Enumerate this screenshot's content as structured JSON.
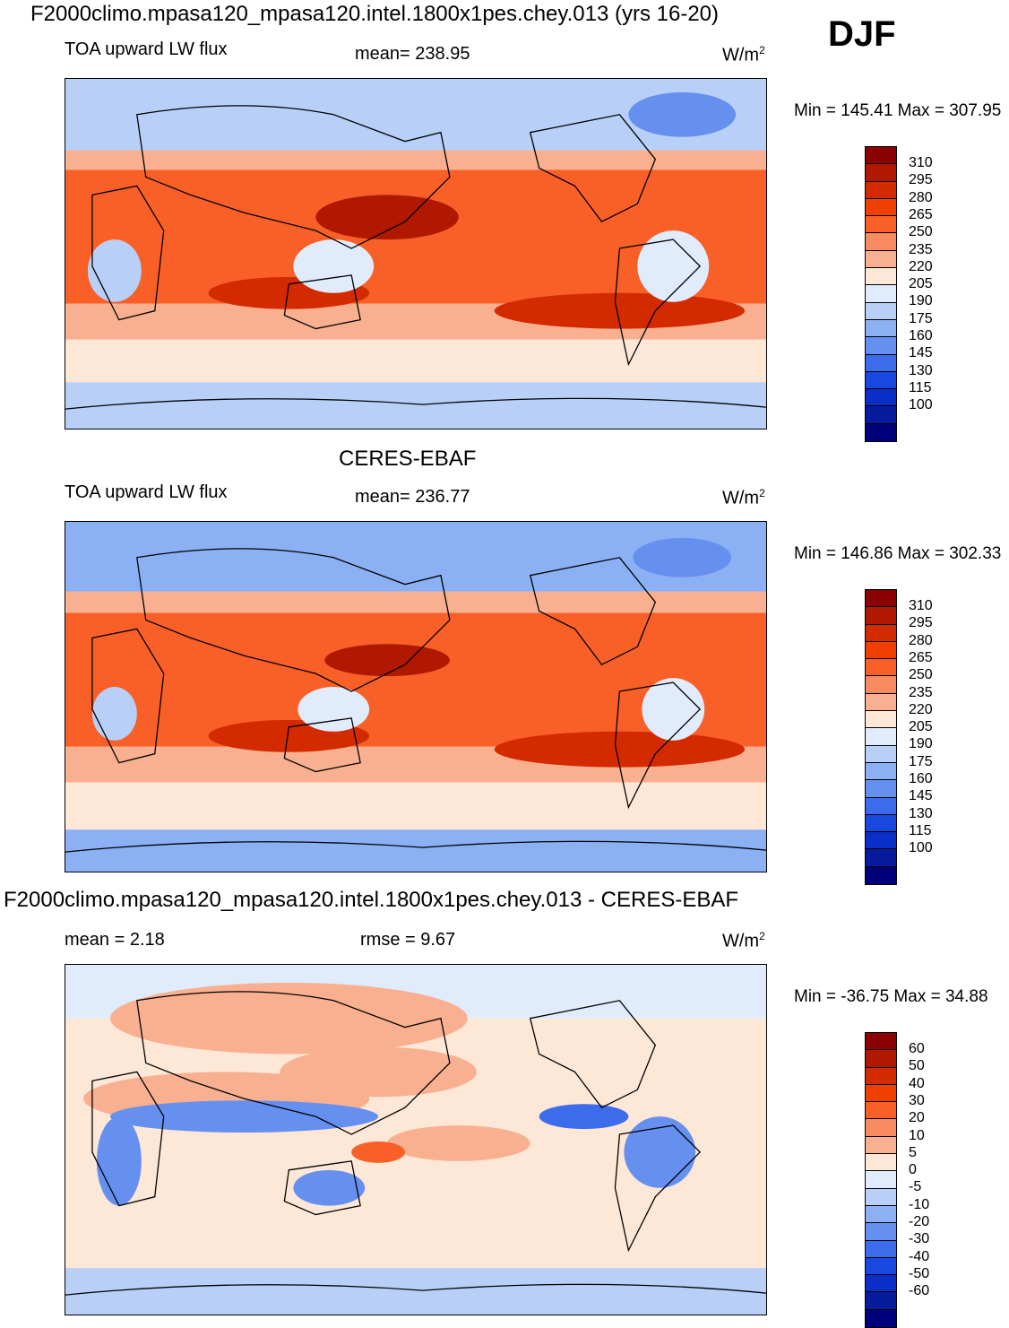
{
  "header": {
    "title": "F2000climo.mpasa120_mpasa120.intel.1800x1pes.chey.013 (yrs 16-20)",
    "season": "DJF"
  },
  "panels": [
    {
      "variable": "TOA upward LW flux",
      "stat1": "mean= 238.95",
      "stat2": "",
      "units": "W/m",
      "units_exp": "2",
      "minmax": "Min = 145.41 Max = 307.95",
      "subtitle": ""
    },
    {
      "variable": "TOA upward LW flux",
      "stat1": "mean= 236.77",
      "stat2": "",
      "units": "W/m",
      "units_exp": "2",
      "minmax": "Min = 146.86 Max = 302.33",
      "subtitle": "CERES-EBAF"
    },
    {
      "variable": "",
      "stat1": "mean =   2.18",
      "stat2": "rmse =    9.67",
      "units": "W/m",
      "units_exp": "2",
      "minmax": "Min = -36.75 Max =  34.88",
      "subtitle": "F2000climo.mpasa120_mpasa120.intel.1800x1pes.chey.013 - CERES-EBAF"
    }
  ],
  "colorbars": {
    "flux": {
      "labels": [
        "310",
        "295",
        "280",
        "265",
        "250",
        "235",
        "220",
        "205",
        "190",
        "175",
        "160",
        "145",
        "130",
        "115",
        "100"
      ],
      "colors": [
        "#8b0000",
        "#b01800",
        "#d42a00",
        "#f04000",
        "#f86028",
        "#f88c60",
        "#f8b090",
        "#fde8d8",
        "#e0ecfc",
        "#b8d0f8",
        "#8cb0f4",
        "#6690f0",
        "#3c6cec",
        "#1848e0",
        "#0a2ec8",
        "#061c9c",
        "#00007a"
      ]
    },
    "diff": {
      "labels": [
        "60",
        "50",
        "40",
        "30",
        "20",
        "10",
        "5",
        "0",
        "-5",
        "-10",
        "-20",
        "-30",
        "-40",
        "-50",
        "-60"
      ],
      "colors": [
        "#8b0000",
        "#b01800",
        "#d42a00",
        "#f04000",
        "#f86028",
        "#f88c60",
        "#f8b090",
        "#fde8d8",
        "#e0ecfc",
        "#b8d0f8",
        "#8cb0f4",
        "#6690f0",
        "#3c6cec",
        "#1848e0",
        "#0a2ec8",
        "#061c9c",
        "#00007a"
      ]
    }
  }
}
